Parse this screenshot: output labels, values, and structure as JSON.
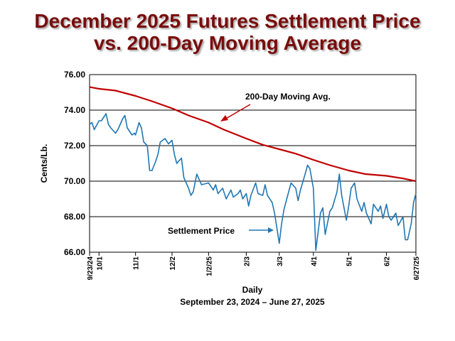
{
  "title": {
    "line1": "December 2025 Futures Settlement Price",
    "line2": "vs. 200-Day Moving Average"
  },
  "colors": {
    "title": "#7a0c0c",
    "moving_avg": "#c00000",
    "settlement": "#1f77b4",
    "grid": "#000000"
  },
  "chart_data": {
    "type": "line",
    "ylabel": "Cents/Lb.",
    "xlabel": "Daily",
    "subtitle": "September 23, 2024 – June 27, 2025",
    "ylim": [
      66,
      76
    ],
    "yticks": [
      "66.00",
      "68.00",
      "70.00",
      "72.00",
      "74.00",
      "76.00"
    ],
    "grid": true,
    "x_range": [
      "2024-09-23",
      "2025-06-27"
    ],
    "x_ticks": [
      {
        "label": "9/23/24",
        "date": "2024-09-23"
      },
      {
        "label": "10/1",
        "date": "2024-10-01"
      },
      {
        "label": "11/1",
        "date": "2024-11-01"
      },
      {
        "label": "12/2",
        "date": "2024-12-02"
      },
      {
        "label": "1/2/25",
        "date": "2025-01-02"
      },
      {
        "label": "2/3",
        "date": "2025-02-03"
      },
      {
        "label": "3/3",
        "date": "2025-03-03"
      },
      {
        "label": "4/1",
        "date": "2025-04-01"
      },
      {
        "label": "5/1",
        "date": "2025-05-01"
      },
      {
        "label": "6/2",
        "date": "2025-06-02"
      },
      {
        "label": "6/27/25",
        "date": "2025-06-27"
      }
    ],
    "annotations": [
      {
        "text": "200-Day Moving Avg.",
        "series": "moving_avg"
      },
      {
        "text": "Settlement Price",
        "series": "settlement"
      }
    ],
    "series": [
      {
        "key": "moving_avg",
        "name": "200-Day Moving Avg.",
        "points": [
          [
            "2024-09-23",
            75.3
          ],
          [
            "2024-10-01",
            75.2
          ],
          [
            "2024-10-15",
            75.1
          ],
          [
            "2024-11-01",
            74.8
          ],
          [
            "2024-11-15",
            74.5
          ],
          [
            "2024-12-02",
            74.1
          ],
          [
            "2024-12-16",
            73.7
          ],
          [
            "2025-01-02",
            73.3
          ],
          [
            "2025-01-15",
            72.9
          ],
          [
            "2025-02-03",
            72.4
          ],
          [
            "2025-02-17",
            72.05
          ],
          [
            "2025-03-03",
            71.8
          ],
          [
            "2025-03-17",
            71.55
          ],
          [
            "2025-04-01",
            71.2
          ],
          [
            "2025-04-15",
            70.9
          ],
          [
            "2025-05-01",
            70.6
          ],
          [
            "2025-05-15",
            70.4
          ],
          [
            "2025-06-02",
            70.3
          ],
          [
            "2025-06-16",
            70.15
          ],
          [
            "2025-06-27",
            70.0
          ]
        ]
      },
      {
        "key": "settlement",
        "name": "Settlement Price",
        "points": [
          [
            "2024-09-23",
            73.2
          ],
          [
            "2024-09-25",
            73.3
          ],
          [
            "2024-09-27",
            72.9
          ],
          [
            "2024-10-01",
            73.4
          ],
          [
            "2024-10-03",
            73.4
          ],
          [
            "2024-10-07",
            73.8
          ],
          [
            "2024-10-09",
            73.2
          ],
          [
            "2024-10-11",
            73.0
          ],
          [
            "2024-10-15",
            72.7
          ],
          [
            "2024-10-17",
            72.9
          ],
          [
            "2024-10-21",
            73.5
          ],
          [
            "2024-10-23",
            73.7
          ],
          [
            "2024-10-25",
            73.0
          ],
          [
            "2024-10-29",
            72.6
          ],
          [
            "2024-10-31",
            72.7
          ],
          [
            "2024-11-01",
            72.6
          ],
          [
            "2024-11-04",
            73.3
          ],
          [
            "2024-11-06",
            73.0
          ],
          [
            "2024-11-08",
            72.2
          ],
          [
            "2024-11-11",
            72.0
          ],
          [
            "2024-11-13",
            70.6
          ],
          [
            "2024-11-15",
            70.6
          ],
          [
            "2024-11-18",
            71.1
          ],
          [
            "2024-11-20",
            71.5
          ],
          [
            "2024-11-22",
            72.2
          ],
          [
            "2024-11-26",
            72.4
          ],
          [
            "2024-11-29",
            72.1
          ],
          [
            "2024-12-02",
            72.3
          ],
          [
            "2024-12-04",
            71.5
          ],
          [
            "2024-12-06",
            71.0
          ],
          [
            "2024-12-10",
            71.3
          ],
          [
            "2024-12-12",
            70.2
          ],
          [
            "2024-12-16",
            69.6
          ],
          [
            "2024-12-18",
            69.2
          ],
          [
            "2024-12-20",
            69.4
          ],
          [
            "2024-12-23",
            70.4
          ],
          [
            "2024-12-27",
            69.8
          ],
          [
            "2025-01-02",
            69.9
          ],
          [
            "2025-01-06",
            69.5
          ],
          [
            "2025-01-08",
            69.8
          ],
          [
            "2025-01-10",
            69.3
          ],
          [
            "2025-01-14",
            69.6
          ],
          [
            "2025-01-17",
            69.0
          ],
          [
            "2025-01-21",
            69.5
          ],
          [
            "2025-01-23",
            69.1
          ],
          [
            "2025-01-27",
            69.3
          ],
          [
            "2025-01-29",
            69.5
          ],
          [
            "2025-01-31",
            69.0
          ],
          [
            "2025-02-03",
            69.3
          ],
          [
            "2025-02-05",
            68.6
          ],
          [
            "2025-02-07",
            69.2
          ],
          [
            "2025-02-11",
            69.9
          ],
          [
            "2025-02-13",
            69.3
          ],
          [
            "2025-02-17",
            69.2
          ],
          [
            "2025-02-19",
            69.8
          ],
          [
            "2025-02-21",
            69.2
          ],
          [
            "2025-02-25",
            68.8
          ],
          [
            "2025-02-27",
            68.2
          ],
          [
            "2025-03-03",
            66.5
          ],
          [
            "2025-03-05",
            67.6
          ],
          [
            "2025-03-07",
            68.4
          ],
          [
            "2025-03-11",
            69.4
          ],
          [
            "2025-03-13",
            69.9
          ],
          [
            "2025-03-17",
            69.6
          ],
          [
            "2025-03-19",
            68.9
          ],
          [
            "2025-03-21",
            69.5
          ],
          [
            "2025-03-25",
            70.4
          ],
          [
            "2025-03-27",
            70.9
          ],
          [
            "2025-03-29",
            70.7
          ],
          [
            "2025-04-01",
            69.6
          ],
          [
            "2025-04-03",
            66.1
          ],
          [
            "2025-04-07",
            68.2
          ],
          [
            "2025-04-09",
            68.5
          ],
          [
            "2025-04-11",
            67.0
          ],
          [
            "2025-04-15",
            68.3
          ],
          [
            "2025-04-17",
            68.5
          ],
          [
            "2025-04-21",
            69.4
          ],
          [
            "2025-04-23",
            70.4
          ],
          [
            "2025-04-25",
            69.2
          ],
          [
            "2025-04-29",
            67.8
          ],
          [
            "2025-05-01",
            68.6
          ],
          [
            "2025-05-03",
            69.6
          ],
          [
            "2025-05-06",
            69.9
          ],
          [
            "2025-05-08",
            69.0
          ],
          [
            "2025-05-12",
            68.3
          ],
          [
            "2025-05-14",
            68.8
          ],
          [
            "2025-05-16",
            68.2
          ],
          [
            "2025-05-20",
            67.6
          ],
          [
            "2025-05-22",
            68.7
          ],
          [
            "2025-05-26",
            68.3
          ],
          [
            "2025-05-28",
            68.6
          ],
          [
            "2025-05-30",
            67.9
          ],
          [
            "2025-06-02",
            68.7
          ],
          [
            "2025-06-04",
            68.0
          ],
          [
            "2025-06-06",
            67.8
          ],
          [
            "2025-06-10",
            68.2
          ],
          [
            "2025-06-12",
            67.5
          ],
          [
            "2025-06-16",
            68.0
          ],
          [
            "2025-06-18",
            66.7
          ],
          [
            "2025-06-20",
            66.7
          ],
          [
            "2025-06-23",
            67.6
          ],
          [
            "2025-06-25",
            68.8
          ],
          [
            "2025-06-27",
            69.3
          ]
        ]
      }
    ]
  }
}
